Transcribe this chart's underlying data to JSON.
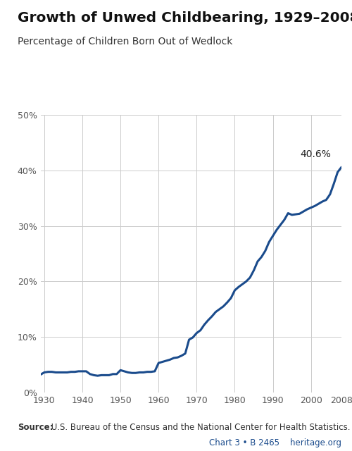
{
  "title": "Growth of Unwed Childbearing, 1929–2008",
  "subtitle": "Percentage of Children Born Out of Wedlock",
  "source_label": "Source:",
  "source_rest": " U.S. Bureau of the Census and the National Center for Health Statistics.",
  "chart_ref": "Chart 3 • B 2465    heritage.org",
  "annotation": "40.6%",
  "line_color": "#1a4b8c",
  "background_color": "#ffffff",
  "grid_color": "#cccccc",
  "xlim": [
    1929,
    2008
  ],
  "ylim": [
    0,
    0.5
  ],
  "xticks": [
    1930,
    1940,
    1950,
    1960,
    1970,
    1980,
    1990,
    2000,
    2008
  ],
  "yticks": [
    0.0,
    0.1,
    0.2,
    0.3,
    0.4,
    0.5
  ],
  "years": [
    1929,
    1930,
    1931,
    1932,
    1933,
    1934,
    1935,
    1936,
    1937,
    1938,
    1939,
    1940,
    1941,
    1942,
    1943,
    1944,
    1945,
    1946,
    1947,
    1948,
    1949,
    1950,
    1951,
    1952,
    1953,
    1954,
    1955,
    1956,
    1957,
    1958,
    1959,
    1960,
    1961,
    1962,
    1963,
    1964,
    1965,
    1966,
    1967,
    1968,
    1969,
    1970,
    1971,
    1972,
    1973,
    1974,
    1975,
    1976,
    1977,
    1978,
    1979,
    1980,
    1981,
    1982,
    1983,
    1984,
    1985,
    1986,
    1987,
    1988,
    1989,
    1990,
    1991,
    1992,
    1993,
    1994,
    1995,
    1996,
    1997,
    1998,
    1999,
    2000,
    2001,
    2002,
    2003,
    2004,
    2005,
    2006,
    2007,
    2008
  ],
  "values": [
    0.032,
    0.036,
    0.037,
    0.037,
    0.036,
    0.036,
    0.036,
    0.036,
    0.037,
    0.037,
    0.038,
    0.038,
    0.038,
    0.033,
    0.031,
    0.03,
    0.031,
    0.031,
    0.031,
    0.033,
    0.033,
    0.04,
    0.038,
    0.036,
    0.035,
    0.035,
    0.036,
    0.036,
    0.037,
    0.037,
    0.038,
    0.053,
    0.055,
    0.057,
    0.059,
    0.062,
    0.063,
    0.066,
    0.07,
    0.095,
    0.099,
    0.107,
    0.112,
    0.122,
    0.13,
    0.137,
    0.145,
    0.15,
    0.155,
    0.162,
    0.17,
    0.184,
    0.19,
    0.195,
    0.2,
    0.207,
    0.22,
    0.236,
    0.244,
    0.255,
    0.271,
    0.282,
    0.293,
    0.302,
    0.311,
    0.323,
    0.32,
    0.321,
    0.322,
    0.326,
    0.33,
    0.333,
    0.336,
    0.34,
    0.344,
    0.347,
    0.357,
    0.376,
    0.397,
    0.406
  ]
}
